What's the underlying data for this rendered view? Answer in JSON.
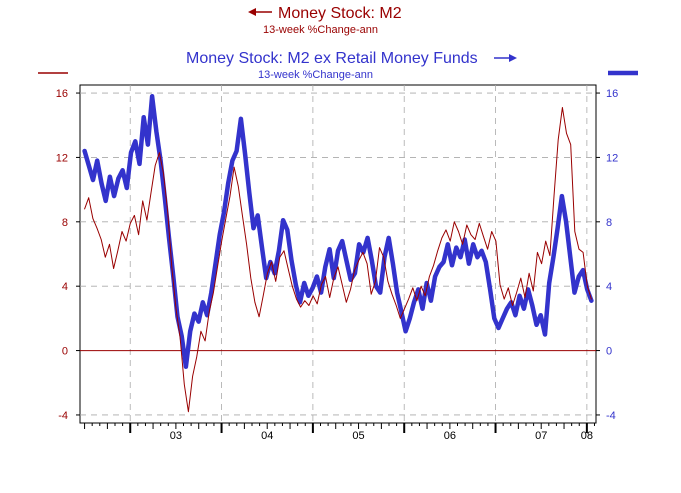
{
  "legend": {
    "series1_title": "Money Stock: M2",
    "series1_subtitle": "13-week %Change-ann",
    "series2_title": "Money Stock: M2 ex Retail Money Funds",
    "series2_subtitle": "13-week %Change-ann"
  },
  "chart_data": {
    "type": "line",
    "x_start": 2002.5,
    "x_end": 2008.05,
    "xlim": [
      2002.45,
      2008.1
    ],
    "ylim": [
      -4.5,
      16.5
    ],
    "gridlines_dashed": true,
    "zero_line": true,
    "y_ticks_left": [
      "16",
      "12",
      "8",
      "4",
      "0",
      "-4"
    ],
    "y_ticks_right": [
      "16",
      "12",
      "8",
      "4",
      "0",
      "-4"
    ],
    "y_tick_values": [
      16,
      12,
      8,
      4,
      0,
      -4
    ],
    "x_tick_labels": [
      "03",
      "04",
      "05",
      "06",
      "07",
      "08"
    ],
    "x_tick_positions": [
      2003.0,
      2004.0,
      2005.0,
      2006.0,
      2007.0,
      2008.0
    ],
    "colors": {
      "series1": "#990000",
      "series2": "#3333cc",
      "zero": "#990000",
      "grid": "#aaaaaa"
    },
    "series": [
      {
        "name": "Money Stock: M2",
        "axis": "left",
        "values": [
          8.8,
          9.5,
          8.2,
          7.6,
          6.9,
          5.8,
          6.6,
          5.1,
          6.2,
          7.4,
          6.8,
          7.9,
          8.4,
          7.2,
          9.3,
          8.1,
          9.8,
          11.5,
          12.3,
          11.0,
          8.6,
          5.2,
          2.6,
          0.8,
          -2.1,
          -3.8,
          -1.6,
          -0.4,
          1.2,
          0.6,
          2.4,
          3.6,
          5.2,
          6.8,
          8.2,
          9.6,
          11.4,
          10.2,
          8.4,
          6.6,
          4.5,
          3.0,
          2.1,
          3.4,
          4.8,
          5.5,
          4.3,
          5.8,
          6.2,
          5.1,
          4.0,
          3.2,
          2.7,
          3.1,
          2.8,
          3.4,
          2.9,
          4.1,
          4.6,
          3.3,
          4.5,
          5.2,
          4.1,
          3.0,
          3.8,
          5.0,
          5.6,
          6.1,
          5.4,
          3.5,
          4.3,
          6.4,
          5.8,
          4.3,
          3.5,
          2.8,
          2.0,
          2.6,
          3.2,
          3.9,
          3.1,
          4.0,
          3.4,
          4.6,
          5.3,
          6.2,
          7.0,
          7.5,
          6.8,
          8.0,
          7.4,
          6.6,
          7.8,
          7.2,
          6.9,
          7.9,
          7.1,
          6.3,
          7.4,
          6.8,
          4.1,
          3.2,
          3.9,
          2.8,
          3.6,
          4.5,
          3.3,
          4.8,
          3.7,
          6.1,
          5.4,
          6.8,
          5.9,
          9.6,
          13.1,
          15.1,
          13.5,
          12.8,
          7.4,
          6.3,
          6.1,
          4.0,
          3.2
        ]
      },
      {
        "name": "Money Stock: M2 ex Retail Money Funds",
        "axis": "right",
        "values": [
          12.4,
          11.5,
          10.6,
          11.8,
          10.4,
          9.3,
          10.8,
          9.6,
          10.7,
          11.2,
          10.1,
          12.3,
          13.0,
          11.6,
          14.5,
          12.8,
          15.8,
          13.6,
          11.8,
          9.5,
          7.0,
          4.6,
          2.1,
          0.9,
          -1.0,
          1.2,
          2.3,
          1.8,
          3.0,
          2.2,
          3.6,
          5.4,
          7.2,
          8.6,
          10.4,
          11.8,
          12.4,
          14.4,
          12.2,
          9.8,
          7.6,
          8.4,
          6.4,
          4.5,
          5.5,
          4.8,
          6.2,
          8.1,
          7.5,
          5.6,
          4.1,
          3.0,
          4.2,
          3.4,
          3.9,
          4.6,
          3.6,
          5.2,
          6.3,
          4.5,
          6.2,
          6.8,
          5.6,
          4.4,
          4.8,
          6.6,
          6.1,
          7.0,
          5.6,
          4.0,
          3.6,
          5.8,
          7.0,
          5.4,
          3.6,
          2.4,
          1.2,
          2.0,
          3.0,
          3.8,
          2.6,
          4.2,
          3.1,
          4.6,
          5.2,
          5.5,
          6.6,
          5.3,
          6.4,
          5.8,
          6.9,
          5.4,
          6.6,
          5.8,
          6.2,
          5.5,
          3.8,
          2.0,
          1.4,
          2.0,
          2.6,
          3.0,
          2.2,
          3.4,
          2.6,
          3.8,
          2.8,
          1.6,
          2.2,
          1.0,
          4.2,
          5.8,
          7.6,
          9.6,
          8.0,
          5.8,
          3.6,
          4.6,
          5.0,
          3.8,
          3.1
        ]
      }
    ]
  }
}
